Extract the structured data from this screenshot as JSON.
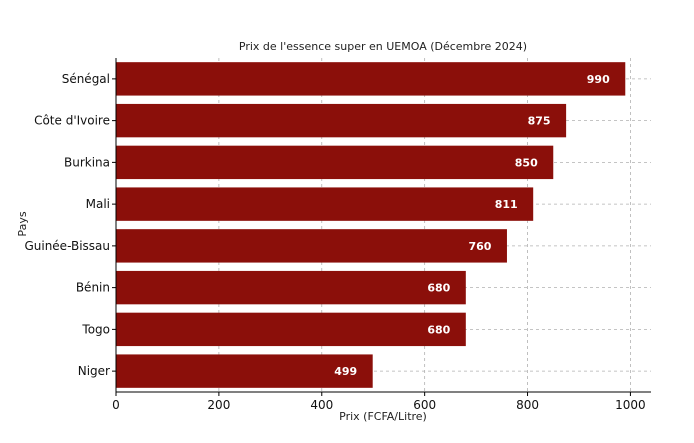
{
  "chart_data": {
    "type": "bar",
    "orientation": "horizontal",
    "title": "Prix de l'essence super en UEMOA (Décembre 2024)",
    "xlabel": "Prix (FCFA/Litre)",
    "ylabel": "Pays",
    "categories": [
      "Sénégal",
      "Côte d'Ivoire",
      "Burkina",
      "Mali",
      "Guinée-Bissau",
      "Bénin",
      "Togo",
      "Niger"
    ],
    "values": [
      990,
      875,
      850,
      811,
      760,
      680,
      680,
      499
    ],
    "xlim": [
      0,
      1040
    ],
    "xticks": [
      0,
      200,
      400,
      600,
      800,
      1000
    ],
    "grid": true,
    "bar_color": "#8b0f0a",
    "data_label_color": "#ffffff"
  }
}
